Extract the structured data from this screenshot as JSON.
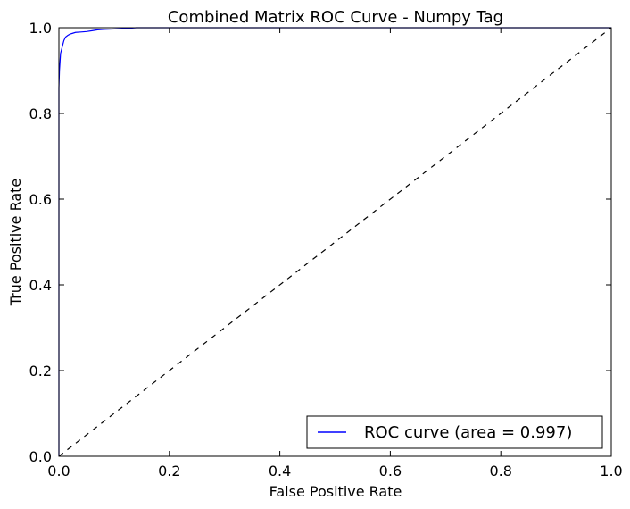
{
  "chart_data": {
    "type": "line",
    "title": "Combined Matrix ROC Curve - Numpy Tag",
    "xlabel": "False Positive Rate",
    "ylabel": "True Positive Rate",
    "xlim": [
      0.0,
      1.0
    ],
    "ylim": [
      0.0,
      1.0
    ],
    "x_ticks": [
      0.0,
      0.2,
      0.4,
      0.6,
      0.8,
      1.0
    ],
    "y_ticks": [
      0.0,
      0.2,
      0.4,
      0.6,
      0.8,
      1.0
    ],
    "x_tick_labels": [
      "0.0",
      "0.2",
      "0.4",
      "0.6",
      "0.8",
      "1.0"
    ],
    "y_tick_labels": [
      "0.0",
      "0.2",
      "0.4",
      "0.6",
      "0.8",
      "1.0"
    ],
    "grid": false,
    "legend_position": "lower-right",
    "series": [
      {
        "name": "ROC curve (area = 0.997)",
        "color": "#0000ff",
        "style": "solid",
        "x": [
          0.0,
          0.0,
          0.001,
          0.002,
          0.003,
          0.005,
          0.007,
          0.009,
          0.012,
          0.016,
          0.02,
          0.025,
          0.03,
          0.04,
          0.05,
          0.06,
          0.07,
          0.08,
          0.1,
          0.12,
          0.13,
          0.14,
          1.0
        ],
        "y": [
          0.0,
          0.86,
          0.9,
          0.92,
          0.94,
          0.95,
          0.96,
          0.97,
          0.978,
          0.982,
          0.985,
          0.987,
          0.989,
          0.99,
          0.991,
          0.993,
          0.995,
          0.996,
          0.997,
          0.998,
          0.999,
          1.0,
          1.0
        ]
      },
      {
        "color": "#000000",
        "style": "dashed",
        "x": [
          0.0,
          1.0
        ],
        "y": [
          0.0,
          1.0
        ]
      }
    ]
  }
}
